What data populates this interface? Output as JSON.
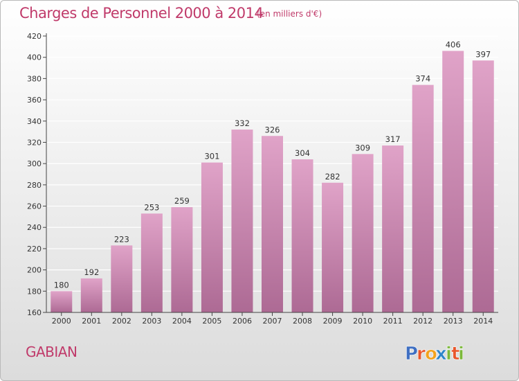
{
  "header": {
    "title": "Charges de Personnel 2000 à 2014",
    "subtitle": "(en milliers d'€)"
  },
  "footer": {
    "commune": "GABIAN",
    "logo_text": "Proxiti",
    "logo_letters": [
      {
        "char": "P",
        "color": "#3f6fc2"
      },
      {
        "char": "r",
        "color": "#e9562b"
      },
      {
        "char": "o",
        "color": "#f2a21c"
      },
      {
        "char": "x",
        "color": "#2f86c9"
      },
      {
        "char": "i",
        "color": "#7cb83b"
      },
      {
        "char": "t",
        "color": "#e9562b"
      },
      {
        "char": "i",
        "color": "#7cb83b"
      }
    ]
  },
  "colors": {
    "bar_top": "#e0a3c8",
    "bar_bottom": "#ad6a94",
    "text_accent": "#c03a6a",
    "gridline": "#ffffff"
  },
  "chart_data": {
    "type": "bar",
    "title": "Charges de Personnel 2000 à 2014",
    "subtitle": "(en milliers d'€)",
    "categories": [
      "2000",
      "2001",
      "2002",
      "2003",
      "2004",
      "2005",
      "2006",
      "2007",
      "2008",
      "2009",
      "2010",
      "2011",
      "2012",
      "2013",
      "2014"
    ],
    "values": [
      180,
      192,
      223,
      253,
      259,
      301,
      332,
      326,
      304,
      282,
      309,
      317,
      374,
      406,
      397
    ],
    "ylim": [
      160,
      420
    ],
    "yticks": [
      160,
      180,
      200,
      220,
      240,
      260,
      280,
      300,
      320,
      340,
      360,
      380,
      400,
      420
    ],
    "grid": true,
    "data_labels": true
  }
}
